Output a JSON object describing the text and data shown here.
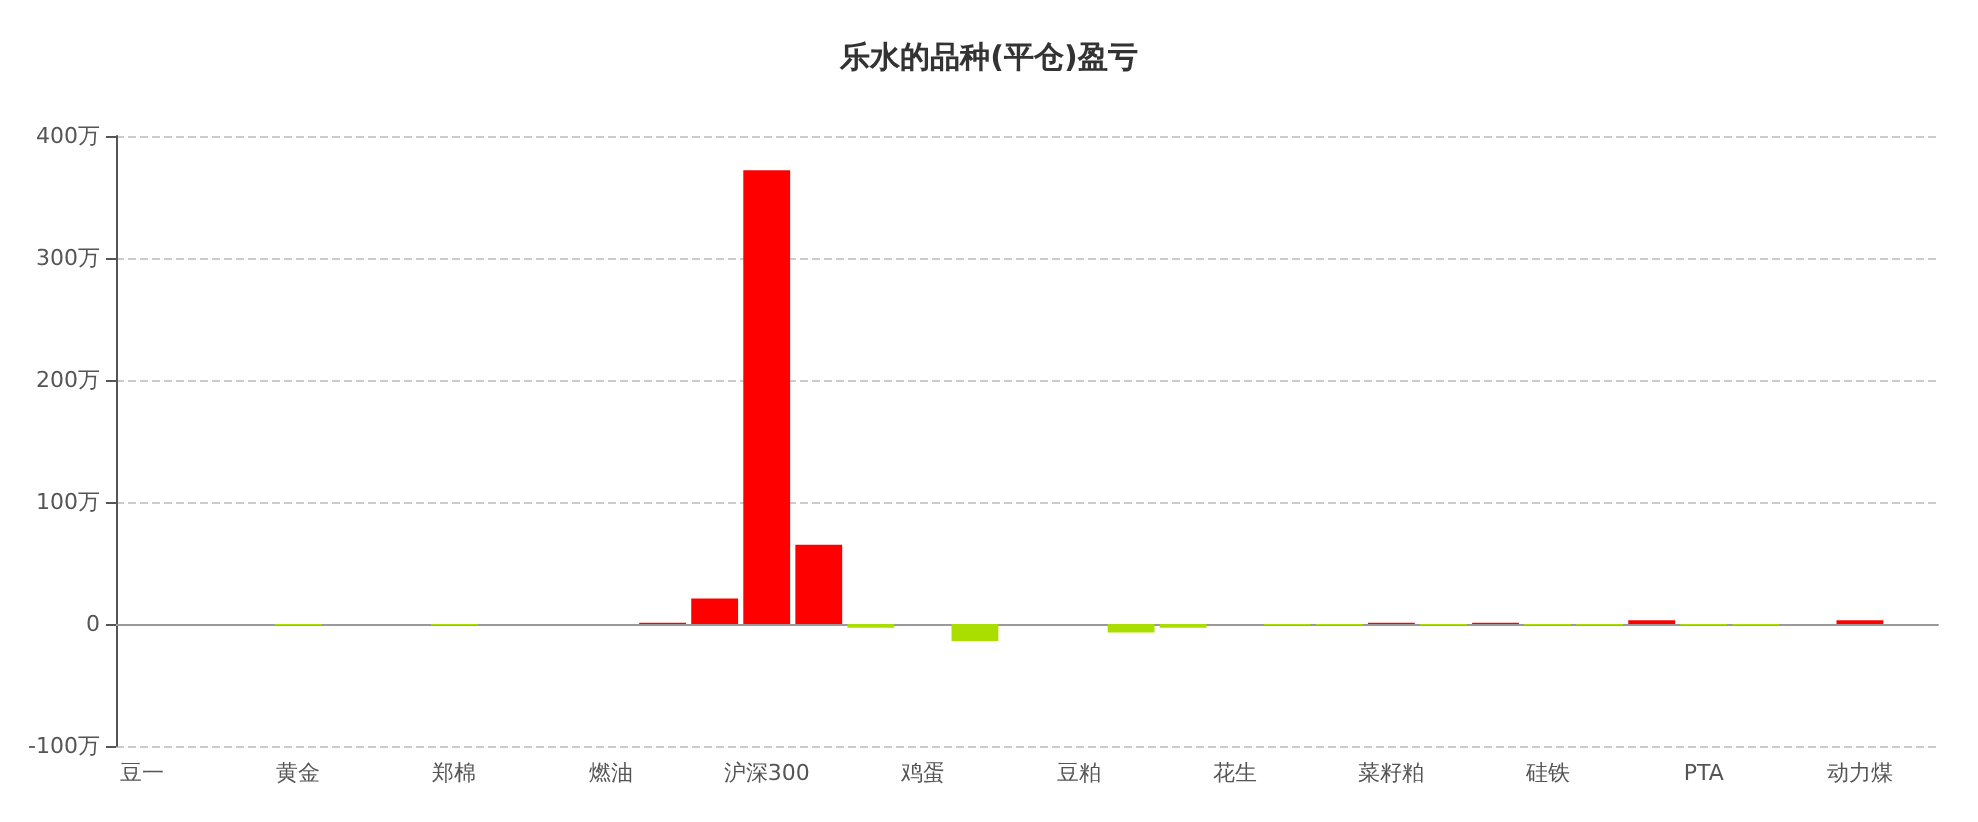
{
  "chart_data": {
    "type": "bar",
    "title": "乐水的品种(平仓)盈亏",
    "categories": [
      "豆一",
      null,
      null,
      "黄金",
      null,
      null,
      "郑棉",
      null,
      null,
      "燃油",
      null,
      null,
      "沪深300",
      null,
      null,
      "鸡蛋",
      null,
      null,
      "豆粕",
      null,
      null,
      "花生",
      null,
      null,
      "菜籽粕",
      null,
      null,
      "硅铁",
      null,
      null,
      "PTA",
      null,
      null,
      "动力煤",
      null
    ],
    "values": [
      0,
      0,
      0,
      -1,
      0,
      0,
      -1,
      0,
      0,
      0,
      1,
      21,
      372,
      65,
      -3,
      0,
      -14,
      0,
      0,
      -7,
      -3,
      0,
      -1,
      -1,
      1,
      -1,
      1,
      -1,
      -1,
      3,
      -1,
      -1,
      0,
      3,
      0
    ],
    "colors": [
      "#ff0000",
      "#ff0000",
      "#ff0000",
      "#aadd00",
      "#ff0000",
      "#ff0000",
      "#aadd00",
      "#ff0000",
      "#ff0000",
      "#ff0000",
      "#ff0000",
      "#ff0000",
      "#ff0000",
      "#ff0000",
      "#aadd00",
      "#ff0000",
      "#aadd00",
      "#ff0000",
      "#ff0000",
      "#aadd00",
      "#aadd00",
      "#ff0000",
      "#aadd00",
      "#aadd00",
      "#ff0000",
      "#aadd00",
      "#ff0000",
      "#aadd00",
      "#aadd00",
      "#ff0000",
      "#aadd00",
      "#aadd00",
      "#ff0000",
      "#ff0000",
      "#ff0000"
    ],
    "ylim": [
      -100,
      400
    ],
    "yticks": [
      {
        "value": -100,
        "label": "-100万"
      },
      {
        "value": 0,
        "label": "0"
      },
      {
        "value": 100,
        "label": "100万"
      },
      {
        "value": 200,
        "label": "200万"
      },
      {
        "value": 300,
        "label": "300万"
      },
      {
        "value": 400,
        "label": "400万"
      }
    ],
    "grid": "y"
  }
}
